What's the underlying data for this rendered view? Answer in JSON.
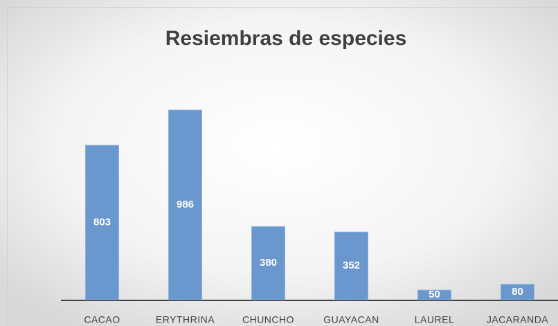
{
  "chart_data": {
    "type": "bar",
    "title": "Resiembras de especies",
    "categories": [
      "CACAO",
      "ERYTHRINA",
      "CHUNCHO",
      "GUAYACAN",
      "LAUREL",
      "JACARANDA"
    ],
    "values": [
      803,
      986,
      380,
      352,
      50,
      80
    ],
    "color": "#6a97cd"
  }
}
